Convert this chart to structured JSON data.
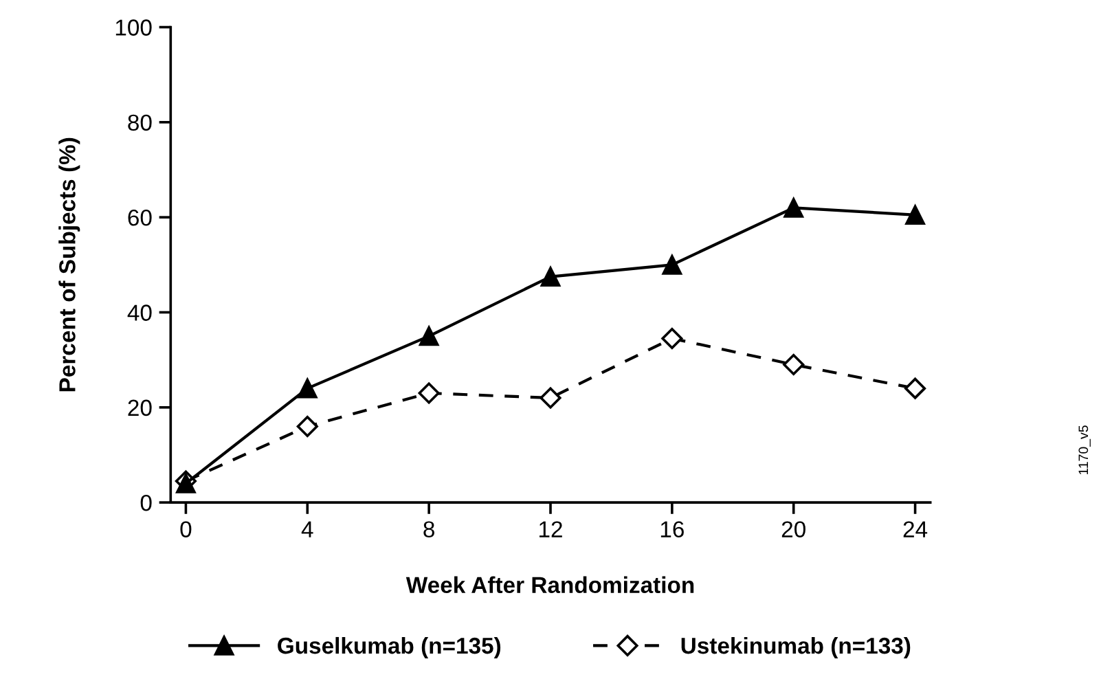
{
  "chart_data": {
    "type": "line",
    "xlabel": "Week After Randomization",
    "ylabel": "Percent of Subjects (%)",
    "x": [
      0,
      4,
      8,
      12,
      16,
      20,
      24
    ],
    "series": [
      {
        "name": "Guselkumab (n=135)",
        "color": "#000000",
        "marker": "triangle",
        "line_style": "solid",
        "values": [
          4,
          24,
          35,
          47.5,
          50,
          62,
          60.5
        ]
      },
      {
        "name": "Ustekinumab (n=133)",
        "color": "#000000",
        "marker": "diamond",
        "line_style": "dashed",
        "values": [
          4.5,
          16,
          23,
          22,
          34.5,
          29,
          24
        ]
      }
    ],
    "xlim": [
      -0.5,
      24.5
    ],
    "xticks": [
      0,
      4,
      8,
      12,
      16,
      20,
      24
    ],
    "ylim": [
      0,
      100
    ],
    "yticks": [
      0,
      20,
      40,
      60,
      80,
      100
    ],
    "grid": false,
    "legend": "bottom",
    "annotations": [
      "1170_v5"
    ]
  }
}
